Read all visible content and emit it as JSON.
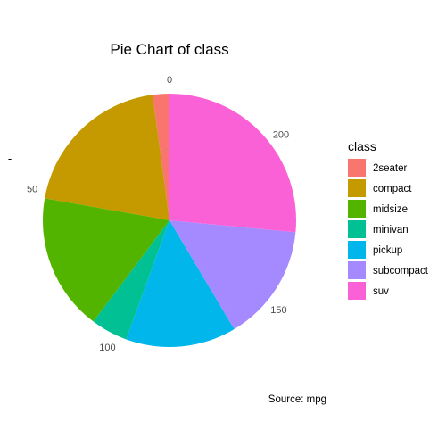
{
  "chart_data": {
    "type": "pie",
    "title": "Pie Chart of class",
    "ylabel": "-",
    "caption": "Source: mpg",
    "legend_title": "class",
    "legend_position": "right",
    "grid": false,
    "categories": [
      "2seater",
      "compact",
      "midsize",
      "minivan",
      "pickup",
      "subcompact",
      "suv"
    ],
    "values": [
      5,
      47,
      41,
      11,
      33,
      35,
      62
    ],
    "colors": [
      "#F8766D",
      "#C49A00",
      "#53B400",
      "#00C094",
      "#00B6EB",
      "#A58AFF",
      "#FB61D7"
    ],
    "ticks": [
      {
        "value": 0,
        "label": "0"
      },
      {
        "value": 50,
        "label": "50"
      },
      {
        "value": 100,
        "label": "100"
      },
      {
        "value": 150,
        "label": "150"
      },
      {
        "value": 200,
        "label": "200"
      }
    ]
  }
}
